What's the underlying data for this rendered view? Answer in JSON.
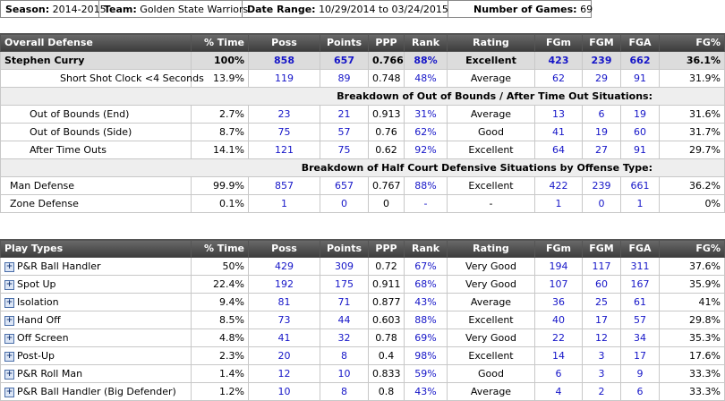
{
  "info": {
    "season_label": "Season:",
    "season": "2014-2015",
    "team_label": "Team:",
    "team": "Golden State Warriors",
    "range_label": "Date Range:",
    "range": "10/29/2014 to 03/24/2015",
    "games_label": "Number of Games:",
    "games": "69"
  },
  "defense": {
    "headers": [
      "Overall Defense",
      "% Time",
      "Poss",
      "Points",
      "PPP",
      "Rank",
      "Rating",
      "FGm",
      "FGM",
      "FGA",
      "FG%"
    ],
    "player": [
      "Stephen Curry",
      "100%",
      "858",
      "657",
      "0.766",
      "88%",
      "Excellent",
      "423",
      "239",
      "662",
      "36.1%"
    ],
    "shot_clock": [
      "Short Shot Clock <4 Seconds",
      "13.9%",
      "119",
      "89",
      "0.748",
      "48%",
      "Average",
      "62",
      "29",
      "91",
      "31.9%"
    ],
    "section_oob": "Breakdown of Out of Bounds / After Time Out Situations:",
    "oob_rows": [
      [
        "Out of Bounds (End)",
        "2.7%",
        "23",
        "21",
        "0.913",
        "31%",
        "Average",
        "13",
        "6",
        "19",
        "31.6%"
      ],
      [
        "Out of Bounds (Side)",
        "8.7%",
        "75",
        "57",
        "0.76",
        "62%",
        "Good",
        "41",
        "19",
        "60",
        "31.7%"
      ],
      [
        "After Time Outs",
        "14.1%",
        "121",
        "75",
        "0.62",
        "92%",
        "Excellent",
        "64",
        "27",
        "91",
        "29.7%"
      ]
    ],
    "section_half": "Breakdown of Half Court Defensive Situations by Offense Type:",
    "half_rows": [
      [
        "Man Defense",
        "99.9%",
        "857",
        "657",
        "0.767",
        "88%",
        "Excellent",
        "422",
        "239",
        "661",
        "36.2%"
      ],
      [
        "Zone Defense",
        "0.1%",
        "1",
        "0",
        "0",
        "-",
        "-",
        "1",
        "0",
        "1",
        "0%"
      ]
    ]
  },
  "plays": {
    "headers": [
      "Play Types",
      "% Time",
      "Poss",
      "Points",
      "PPP",
      "Rank",
      "Rating",
      "FGm",
      "FGM",
      "FGA",
      "FG%"
    ],
    "rows": [
      [
        "P&R Ball Handler",
        "50%",
        "429",
        "309",
        "0.72",
        "67%",
        "Very Good",
        "194",
        "117",
        "311",
        "37.6%"
      ],
      [
        "Spot Up",
        "22.4%",
        "192",
        "175",
        "0.911",
        "68%",
        "Very Good",
        "107",
        "60",
        "167",
        "35.9%"
      ],
      [
        "Isolation",
        "9.4%",
        "81",
        "71",
        "0.877",
        "43%",
        "Average",
        "36",
        "25",
        "61",
        "41%"
      ],
      [
        "Hand Off",
        "8.5%",
        "73",
        "44",
        "0.603",
        "88%",
        "Excellent",
        "40",
        "17",
        "57",
        "29.8%"
      ],
      [
        "Off Screen",
        "4.8%",
        "41",
        "32",
        "0.78",
        "69%",
        "Very Good",
        "22",
        "12",
        "34",
        "35.3%"
      ],
      [
        "Post-Up",
        "2.3%",
        "20",
        "8",
        "0.4",
        "98%",
        "Excellent",
        "14",
        "3",
        "17",
        "17.6%"
      ],
      [
        "P&R Roll Man",
        "1.4%",
        "12",
        "10",
        "0.833",
        "59%",
        "Good",
        "6",
        "3",
        "9",
        "33.3%"
      ],
      [
        "P&R Ball Handler (Big Defender)",
        "1.2%",
        "10",
        "8",
        "0.8",
        "43%",
        "Average",
        "4",
        "2",
        "6",
        "33.3%"
      ]
    ]
  },
  "icons": {
    "expand": "plus-box-icon"
  },
  "colors": {
    "header_bg": "#4a4a4a",
    "value_blue": "#1515c8",
    "player_row_bg": "#dcdcdc"
  }
}
